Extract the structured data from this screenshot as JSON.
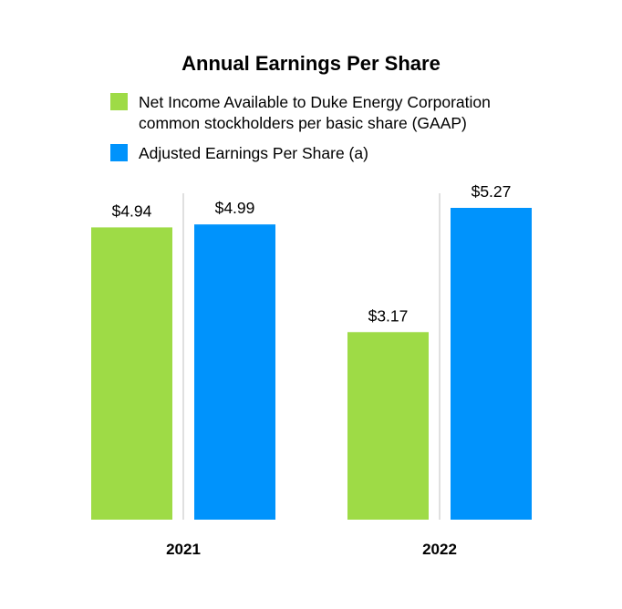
{
  "chart_data": {
    "type": "bar",
    "title": "Annual Earnings Per Share",
    "categories": [
      "2021",
      "2022"
    ],
    "series": [
      {
        "name": "Net Income Available to Duke Energy Corporation common stockholders per basic share (GAAP)",
        "values": [
          4.94,
          3.17
        ],
        "labels": [
          "$4.94",
          "$3.17"
        ],
        "color": "#9edb46"
      },
      {
        "name": "Adjusted Earnings Per Share (a)",
        "values": [
          4.99,
          5.27
        ],
        "labels": [
          "$4.99",
          "$5.27"
        ],
        "color": "#0093fc"
      }
    ],
    "xlabel": "",
    "ylabel": "",
    "ylim": [
      0,
      5.27
    ],
    "grid": false,
    "legend_position": "top",
    "separator_color": "#e0e0e0"
  }
}
